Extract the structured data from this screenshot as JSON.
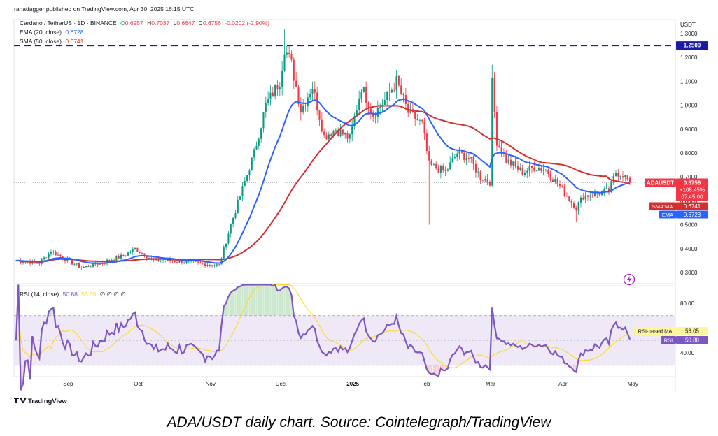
{
  "header": {
    "publisher": "ranadagger published on TradingView.com, Apr 30, 2025 16:15 UTC",
    "symbol_line": "Cardano / TetherUS · 1D · BINANCE",
    "ohlc": {
      "O": "0.6957",
      "H": "0.7037",
      "L": "0.6647",
      "C": "0.6756",
      "change": "-0.0202 (-2.90%)"
    },
    "ema_label": "EMA (20, close)",
    "ema_value": "0.6728",
    "sma_label": "SMA (50, close)",
    "sma_value": "0.6741",
    "currency": "USDT"
  },
  "rsi_header": {
    "label": "RSI (14, close)",
    "rsi_value": "50.88",
    "ma_value": "53.05",
    "extras": "∅ ∅ ∅ ∅"
  },
  "price_labels": {
    "level": "1.2500",
    "symbol": "ADAUSDT",
    "price": "0.6756",
    "change": "+108.45%",
    "countdown": "07:45:00",
    "sma_tag": "SMA:MA",
    "sma_value": "0.6741",
    "ema_tag": "EMA",
    "ema_value": "0.6728",
    "rsi_ma_tag": "RSI-based MA",
    "rsi_ma_value": "53.05",
    "rsi_tag": "RSI",
    "rsi_value": "50.88"
  },
  "footer": {
    "logo_text": "TradingView",
    "caption": "ADA/USDT daily chart. Source: Cointelegraph/TradingView"
  },
  "colors": {
    "up": "#089981",
    "down": "#f23645",
    "ema": "#2962ff",
    "sma": "#d32f2f",
    "rsi": "#7e57c2",
    "rsi_ma": "#fdd835",
    "level_line": "#1a1aa6",
    "rsi_band": "#ede7f6"
  },
  "chart_data": {
    "type": "candlestick",
    "x_labels": [
      "Sep",
      "Oct",
      "Nov",
      "Dec",
      "2025",
      "Feb",
      "Mar",
      "Apr",
      "May"
    ],
    "price_axis": [
      "1.3000",
      "1.2000",
      "1.1000",
      "1.0000",
      "0.9000",
      "0.8000",
      "0.7000",
      "0.6000",
      "0.5000",
      "0.4000",
      "0.3000"
    ],
    "ylim": [
      0.26,
      1.33
    ],
    "horizontal_level": 1.25,
    "close_path": [
      [
        "Aug 10",
        0.35
      ],
      [
        "Aug 20",
        0.34
      ],
      [
        "Aug 25",
        0.39
      ],
      [
        "Sep 1",
        0.35
      ],
      [
        "Sep 7",
        0.32
      ],
      [
        "Sep 15",
        0.34
      ],
      [
        "Sep 25",
        0.37
      ],
      [
        "Sep 30",
        0.4
      ],
      [
        "Oct 8",
        0.35
      ],
      [
        "Oct 15",
        0.35
      ],
      [
        "Oct 25",
        0.34
      ],
      [
        "Nov 5",
        0.33
      ],
      [
        "Nov 10",
        0.5
      ],
      [
        "Nov 15",
        0.65
      ],
      [
        "Nov 20",
        0.8
      ],
      [
        "Nov 25",
        1.0
      ],
      [
        "Dec 1",
        1.1
      ],
      [
        "Dec 3",
        1.24
      ],
      [
        "Dec 6",
        1.17
      ],
      [
        "Dec 10",
        0.98
      ],
      [
        "Dec 15",
        1.08
      ],
      [
        "Dec 20",
        0.87
      ],
      [
        "Dec 25",
        0.9
      ],
      [
        "Dec 31",
        0.86
      ],
      [
        "Jan 5",
        1.08
      ],
      [
        "Jan 10",
        0.96
      ],
      [
        "Jan 15",
        1.02
      ],
      [
        "Jan 20",
        1.1
      ],
      [
        "Jan 25",
        0.97
      ],
      [
        "Jan 31",
        0.92
      ],
      [
        "Feb 3",
        0.75
      ],
      [
        "Feb 10",
        0.72
      ],
      [
        "Feb 15",
        0.8
      ],
      [
        "Feb 20",
        0.78
      ],
      [
        "Feb 25",
        0.7
      ],
      [
        "Mar 1",
        0.68
      ],
      [
        "Mar 2",
        1.09
      ],
      [
        "Mar 4",
        0.85
      ],
      [
        "Mar 8",
        0.77
      ],
      [
        "Mar 15",
        0.72
      ],
      [
        "Mar 20",
        0.74
      ],
      [
        "Mar 25",
        0.73
      ],
      [
        "Mar 31",
        0.66
      ],
      [
        "Apr 7",
        0.57
      ],
      [
        "Apr 10",
        0.62
      ],
      [
        "Apr 15",
        0.63
      ],
      [
        "Apr 21",
        0.64
      ],
      [
        "Apr 24",
        0.72
      ],
      [
        "Apr 27",
        0.71
      ],
      [
        "Apr 30",
        0.6756
      ]
    ],
    "last_ohlc": {
      "open": 0.6957,
      "high": 0.7037,
      "low": 0.6647,
      "close": 0.6756
    },
    "series": [
      {
        "name": "EMA (20, close)",
        "last": 0.6728
      },
      {
        "name": "SMA (50, close)",
        "last": 0.6741
      }
    ],
    "rsi": {
      "axis": [
        "80.00",
        "40.00"
      ],
      "ylim": [
        10,
        95
      ],
      "band": [
        30,
        70
      ],
      "last": 50.88,
      "ma_last": 53.05
    }
  }
}
